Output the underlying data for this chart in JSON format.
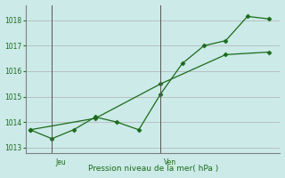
{
  "bg_color": "#cceae8",
  "grid_color": "#b0b0b0",
  "line_color": "#1a6b1a",
  "line1_x": [
    0,
    1,
    2,
    3,
    4,
    5,
    6,
    7,
    8,
    9,
    10,
    11
  ],
  "line1_y": [
    1013.7,
    1013.35,
    1013.7,
    1014.2,
    1014.0,
    1013.7,
    1015.1,
    1016.3,
    1017.0,
    1017.2,
    1018.15,
    1018.05
  ],
  "line2_x": [
    0,
    3,
    6,
    9,
    11
  ],
  "line2_y": [
    1013.7,
    1014.15,
    1015.5,
    1016.65,
    1016.75
  ],
  "ylim": [
    1012.8,
    1018.6
  ],
  "yticks": [
    1013,
    1014,
    1015,
    1016,
    1017,
    1018
  ],
  "xlim": [
    -0.2,
    11.5
  ],
  "jeu_x": 1.0,
  "ven_x": 6.0,
  "xlabel": "Pression niveau de la mer( hPa )"
}
